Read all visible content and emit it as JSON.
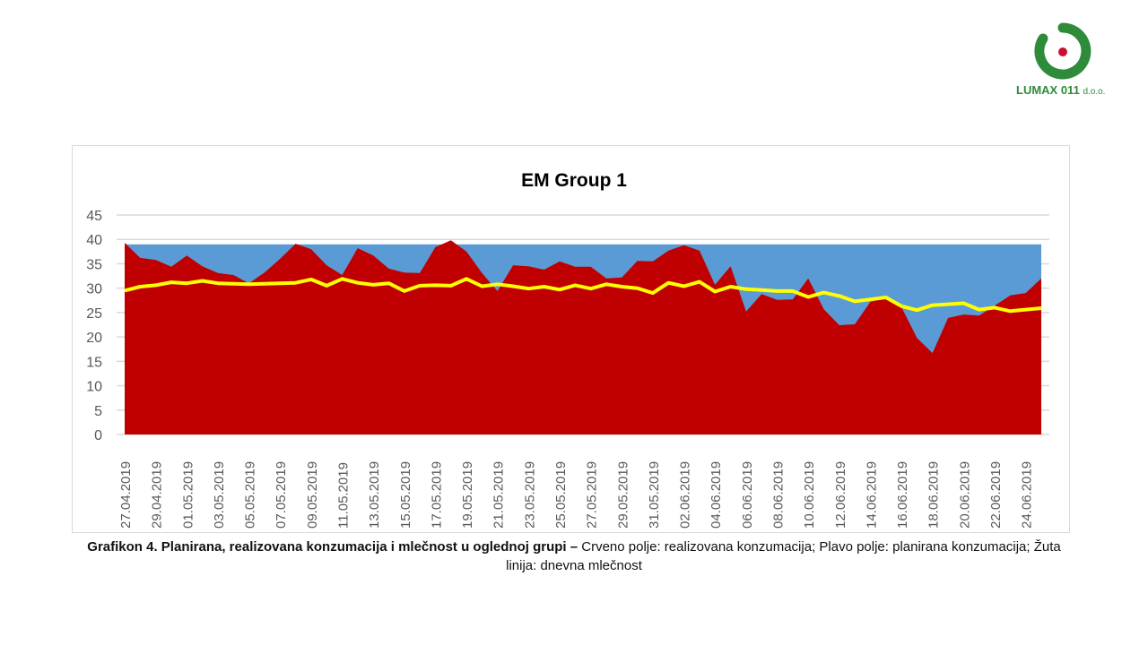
{
  "logo": {
    "text": "LUMAX 011",
    "suffix": "d.o.o.",
    "colors": {
      "green": "#2e8b3a",
      "red": "#c8102e"
    }
  },
  "caption": {
    "bold": "Grafikon 4. Planirana, realizovana konzumacija i mlečnost u oglednoj grupi –",
    "rest": " Crveno polje: realizovana konzumacija; Plavo polje: planirana konzumacija; Žuta linija: dnevna mlečnost"
  },
  "chart_data": {
    "type": "area",
    "title": "EM Group 1",
    "xlabel": "",
    "ylabel": "",
    "ylim": [
      0,
      45
    ],
    "yticks": [
      0,
      5,
      10,
      15,
      20,
      25,
      30,
      35,
      40,
      45
    ],
    "grid": true,
    "legend": "none",
    "x_start": "27.04.2019",
    "x_end": "25.06.2019",
    "x_tick_labels": [
      "27.04.2019",
      "29.04.2019",
      "01.05.2019",
      "03.05.2019",
      "05.05.2019",
      "07.05.2019",
      "09.05.2019",
      "11.05.2019",
      "13.05.2019",
      "15.05.2019",
      "17.05.2019",
      "19.05.2019",
      "21.05.2019",
      "23.05.2019",
      "25.05.2019",
      "27.05.2019",
      "29.05.2019",
      "31.05.2019",
      "02.06.2019",
      "04.06.2019",
      "06.06.2019",
      "08.06.2019",
      "10.06.2019",
      "12.06.2019",
      "14.06.2019",
      "16.06.2019",
      "18.06.2019",
      "20.06.2019",
      "22.06.2019",
      "24.06.2019"
    ],
    "series": [
      {
        "type": "area",
        "color": "#5b9bd5",
        "values": [
          39,
          39,
          39,
          39,
          39,
          39,
          39,
          39,
          39,
          39,
          39,
          39,
          39,
          39,
          39,
          39,
          39,
          39,
          39,
          39,
          39,
          39,
          39,
          39,
          39,
          39,
          39,
          39,
          39,
          39,
          39,
          39,
          39,
          39,
          39,
          39,
          39,
          39,
          39,
          39,
          39,
          39,
          39,
          39,
          39,
          39,
          39,
          39,
          39,
          39,
          39,
          39,
          39,
          39,
          39,
          39,
          39,
          39,
          39,
          39
        ]
      },
      {
        "type": "area",
        "color": "#c00000",
        "values": [
          39.3,
          36.2,
          35.8,
          34.4,
          36.7,
          34.5,
          33.1,
          32.7,
          31.0,
          33.2,
          36.0,
          39.1,
          38.0,
          34.7,
          32.7,
          38.2,
          36.7,
          34.0,
          33.2,
          33.1,
          38.4,
          39.8,
          37.5,
          33.1,
          29.4,
          34.7,
          34.5,
          33.8,
          35.5,
          34.4,
          34.4,
          32.0,
          32.2,
          35.6,
          35.5,
          37.7,
          38.8,
          37.7,
          30.7,
          34.5,
          25.2,
          28.8,
          27.6,
          27.7,
          32.0,
          25.7,
          22.4,
          22.6,
          27.2,
          27.9,
          26.1,
          19.8,
          16.7,
          23.9,
          24.6,
          24.4,
          26.4,
          28.5,
          29.0,
          32.0
        ]
      },
      {
        "type": "line",
        "color": "#ffff00",
        "values": [
          29.5,
          30.3,
          30.6,
          31.2,
          31.0,
          31.5,
          31.0,
          30.9,
          30.8,
          30.9,
          31.0,
          31.1,
          31.8,
          30.5,
          31.9,
          31.1,
          30.7,
          31.0,
          29.4,
          30.5,
          30.6,
          30.5,
          31.9,
          30.4,
          30.8,
          30.4,
          29.9,
          30.3,
          29.7,
          30.6,
          29.9,
          30.8,
          30.3,
          30.0,
          29.0,
          31.1,
          30.4,
          31.3,
          29.3,
          30.3,
          29.8,
          29.6,
          29.4,
          29.4,
          28.2,
          29.1,
          28.4,
          27.3,
          27.7,
          28.1,
          26.3,
          25.5,
          26.5,
          26.7,
          26.9,
          25.6,
          26.0,
          25.3,
          25.6,
          25.9
        ]
      }
    ]
  }
}
